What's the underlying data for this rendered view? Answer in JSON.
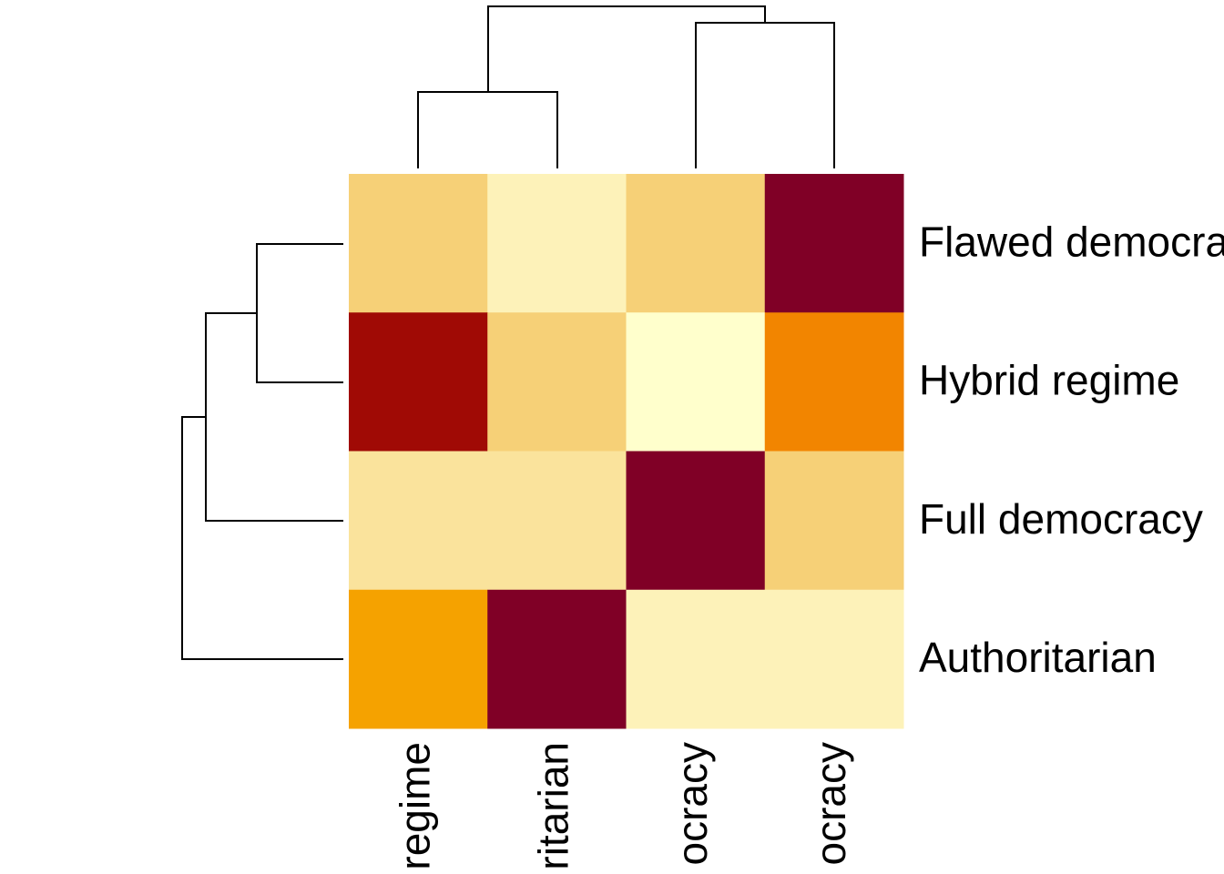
{
  "chart_data": {
    "type": "heatmap",
    "rows": [
      "Flawed democra",
      "Hybrid regime",
      "Full democracy",
      "Authoritarian"
    ],
    "columns": [
      "regime",
      "ritarian",
      "ocracy",
      "ocracy"
    ],
    "values": [
      [
        0.3,
        0.1,
        0.3,
        1
      ],
      [
        0.85,
        0.3,
        0,
        0.6
      ],
      [
        0.2,
        0.2,
        1,
        0.3
      ],
      [
        0.5,
        1,
        0.1,
        0.1
      ]
    ],
    "zlim": [
      0,
      1
    ],
    "colorscale": [
      [
        0,
        "#ffffcc"
      ],
      [
        0.1,
        "#fdf2b9"
      ],
      [
        0.2,
        "#fae39c"
      ],
      [
        0.3,
        "#f6d077"
      ],
      [
        0.5,
        "#f5a200"
      ],
      [
        0.6,
        "#f28500"
      ],
      [
        0.85,
        "#a00a05"
      ],
      [
        1,
        "#800026"
      ]
    ]
  }
}
